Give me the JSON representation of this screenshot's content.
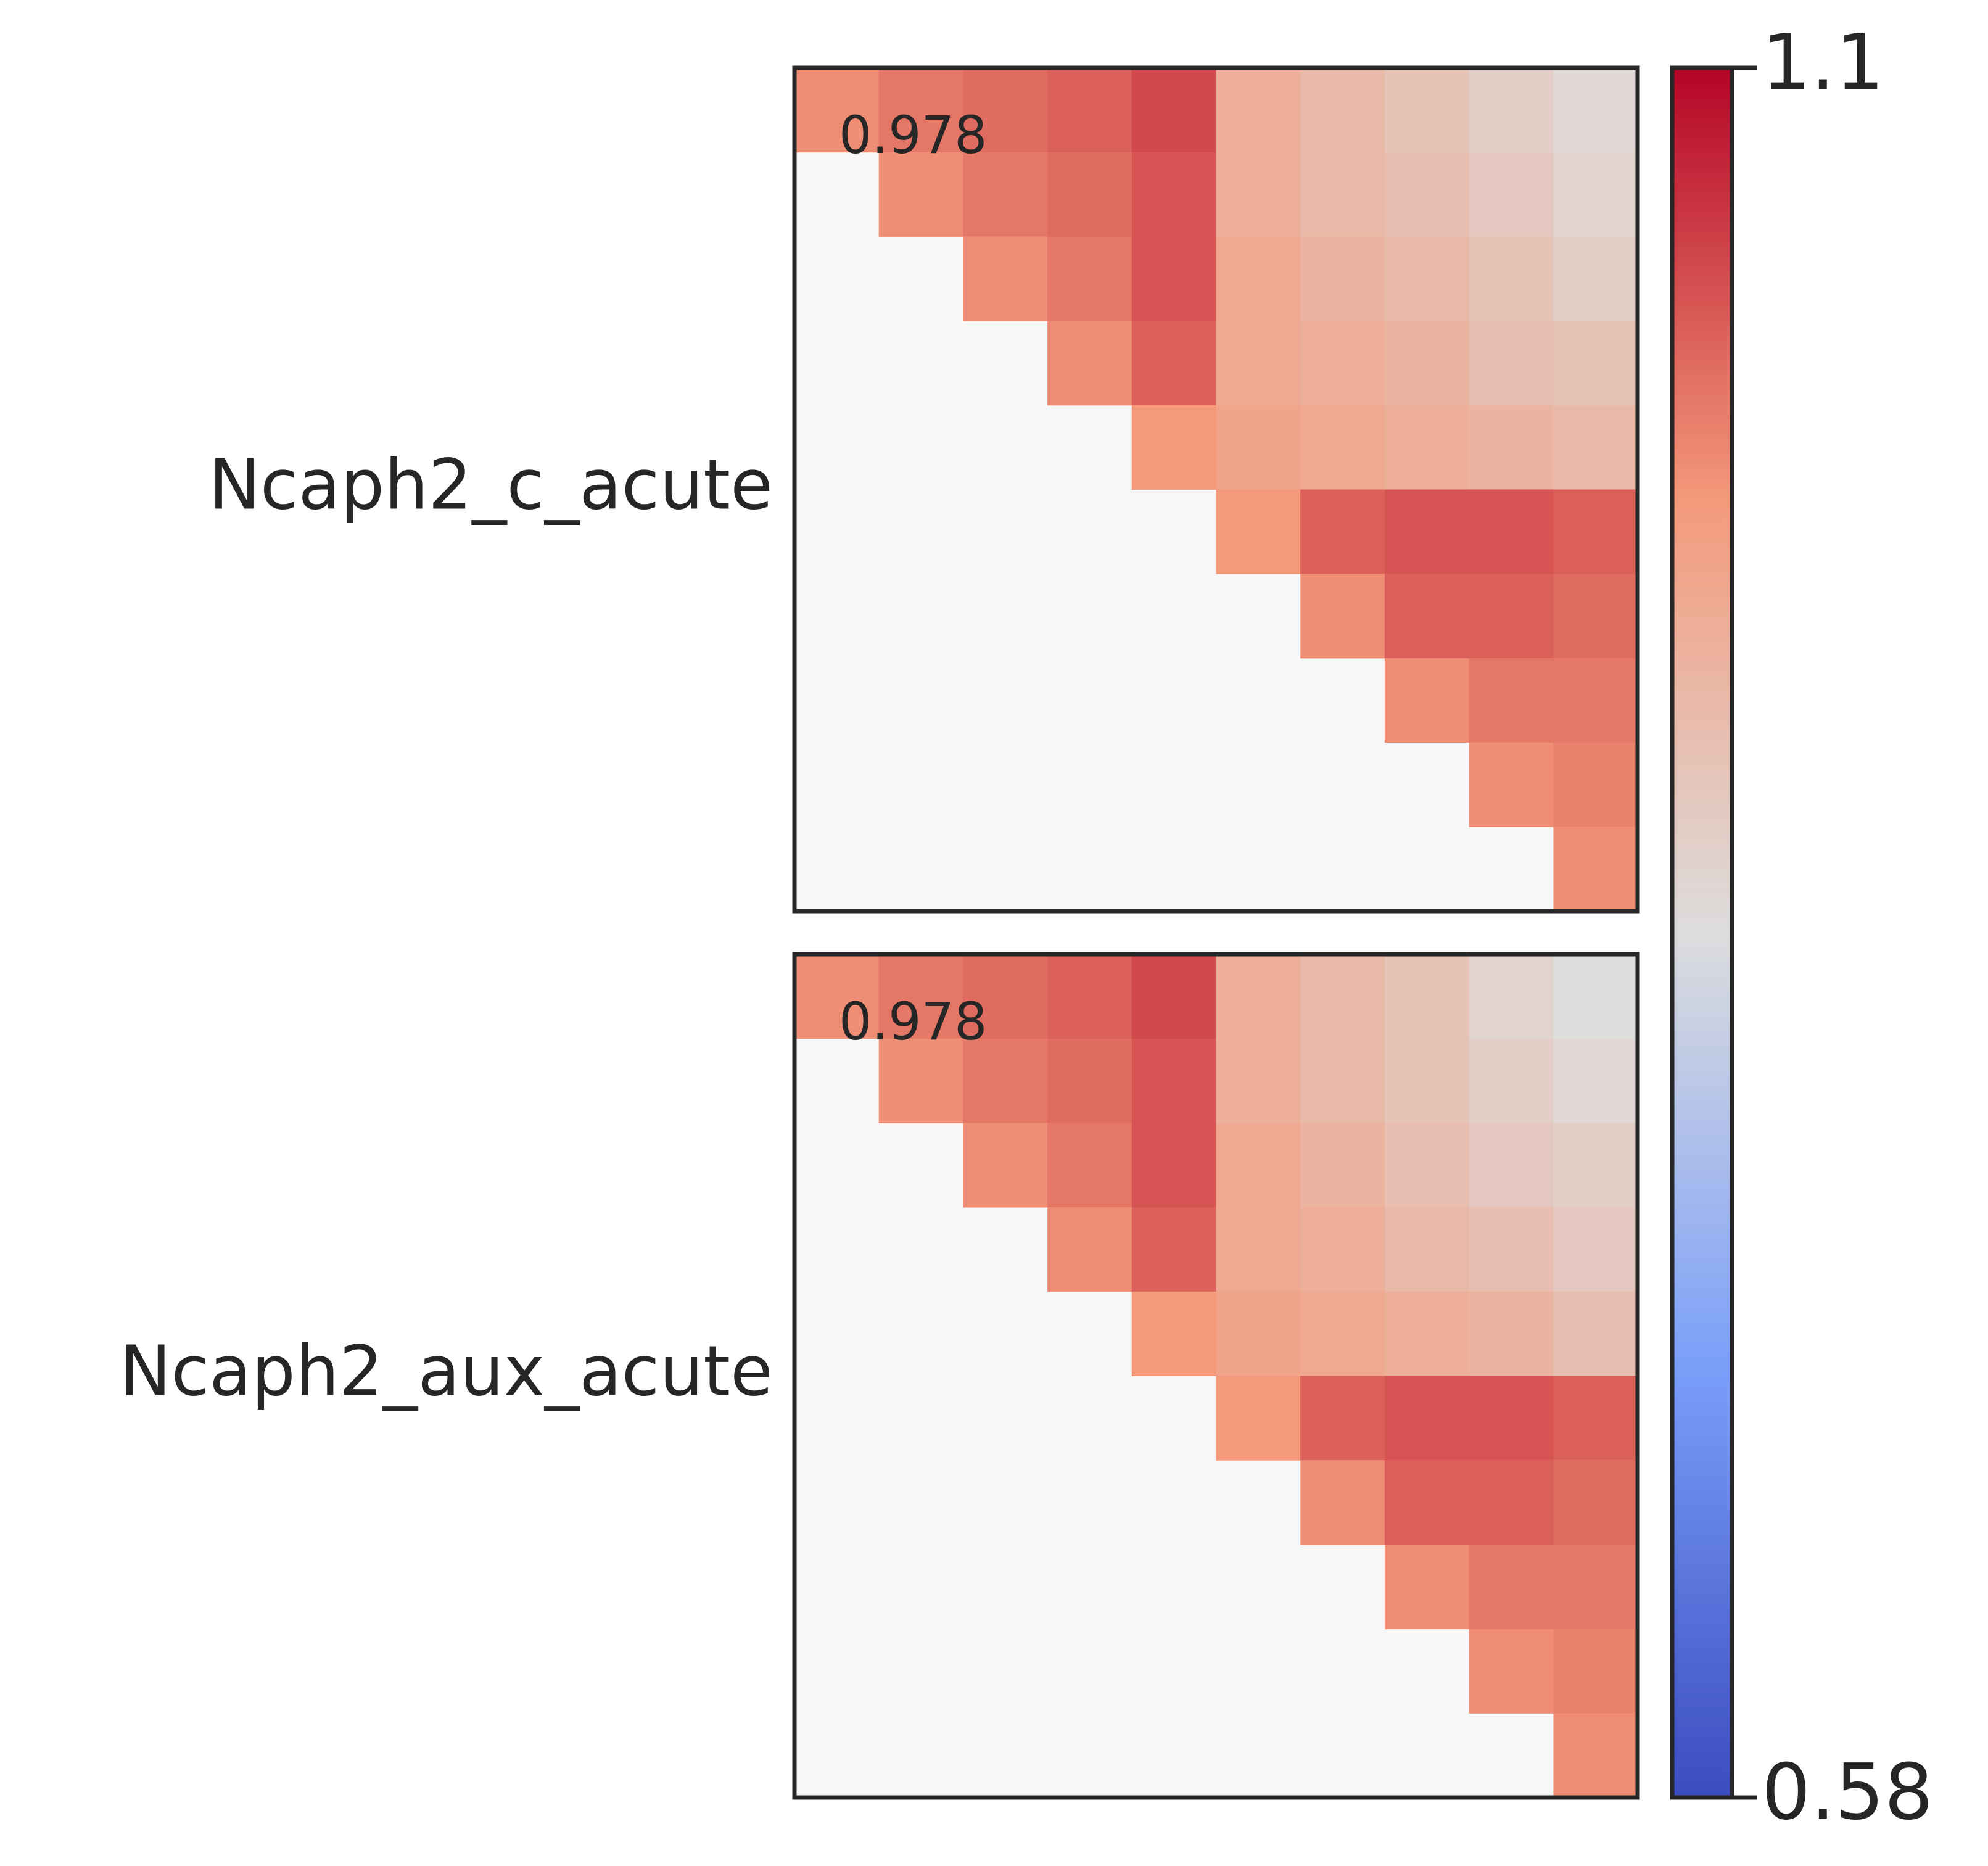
{
  "chart_data": {
    "type": "heatmap",
    "colormap": [
      "#3b4cc0",
      "#7b9ff9",
      "#dddddd",
      "#f49a7b",
      "#b40426"
    ],
    "clim": [
      0.58,
      1.1
    ],
    "cticks": [
      0.58,
      1.1
    ],
    "panels": [
      {
        "label": "Ncaph2_c_acute",
        "annotation": 0.978,
        "values": [
          [
            0.98,
            1.0,
            1.01,
            1.02,
            1.04,
            0.93,
            0.91,
            0.89,
            0.87,
            0.85
          ],
          [
            null,
            0.98,
            1.0,
            1.01,
            1.03,
            0.93,
            0.91,
            0.9,
            0.88,
            0.86
          ],
          [
            null,
            null,
            0.98,
            1.0,
            1.03,
            0.94,
            0.92,
            0.91,
            0.89,
            0.87
          ],
          [
            null,
            null,
            null,
            0.98,
            1.02,
            0.94,
            0.93,
            0.92,
            0.9,
            0.89
          ],
          [
            null,
            null,
            null,
            null,
            0.97,
            0.95,
            0.94,
            0.93,
            0.92,
            0.91
          ],
          [
            null,
            null,
            null,
            null,
            null,
            0.97,
            1.02,
            1.03,
            1.03,
            1.02
          ],
          [
            null,
            null,
            null,
            null,
            null,
            null,
            0.98,
            1.02,
            1.02,
            1.01
          ],
          [
            null,
            null,
            null,
            null,
            null,
            null,
            null,
            0.98,
            1.0,
            1.0
          ],
          [
            null,
            null,
            null,
            null,
            null,
            null,
            null,
            null,
            0.98,
            0.99
          ],
          [
            null,
            null,
            null,
            null,
            null,
            null,
            null,
            null,
            null,
            0.98
          ]
        ]
      },
      {
        "label": "Ncaph2_aux_acute",
        "annotation": 0.978,
        "values": [
          [
            0.98,
            1.0,
            1.01,
            1.02,
            1.04,
            0.93,
            0.91,
            0.89,
            0.86,
            0.84
          ],
          [
            null,
            0.98,
            1.0,
            1.01,
            1.03,
            0.93,
            0.91,
            0.89,
            0.87,
            0.85
          ],
          [
            null,
            null,
            0.98,
            1.0,
            1.03,
            0.94,
            0.92,
            0.9,
            0.88,
            0.87
          ],
          [
            null,
            null,
            null,
            0.98,
            1.02,
            0.94,
            0.93,
            0.91,
            0.9,
            0.88
          ],
          [
            null,
            null,
            null,
            null,
            0.97,
            0.95,
            0.94,
            0.93,
            0.92,
            0.9
          ],
          [
            null,
            null,
            null,
            null,
            null,
            0.97,
            1.02,
            1.03,
            1.03,
            1.02
          ],
          [
            null,
            null,
            null,
            null,
            null,
            null,
            0.98,
            1.02,
            1.02,
            1.01
          ],
          [
            null,
            null,
            null,
            null,
            null,
            null,
            null,
            0.98,
            1.0,
            1.0
          ],
          [
            null,
            null,
            null,
            null,
            null,
            null,
            null,
            null,
            0.98,
            0.99
          ],
          [
            null,
            null,
            null,
            null,
            null,
            null,
            null,
            null,
            null,
            0.98
          ]
        ]
      }
    ]
  }
}
